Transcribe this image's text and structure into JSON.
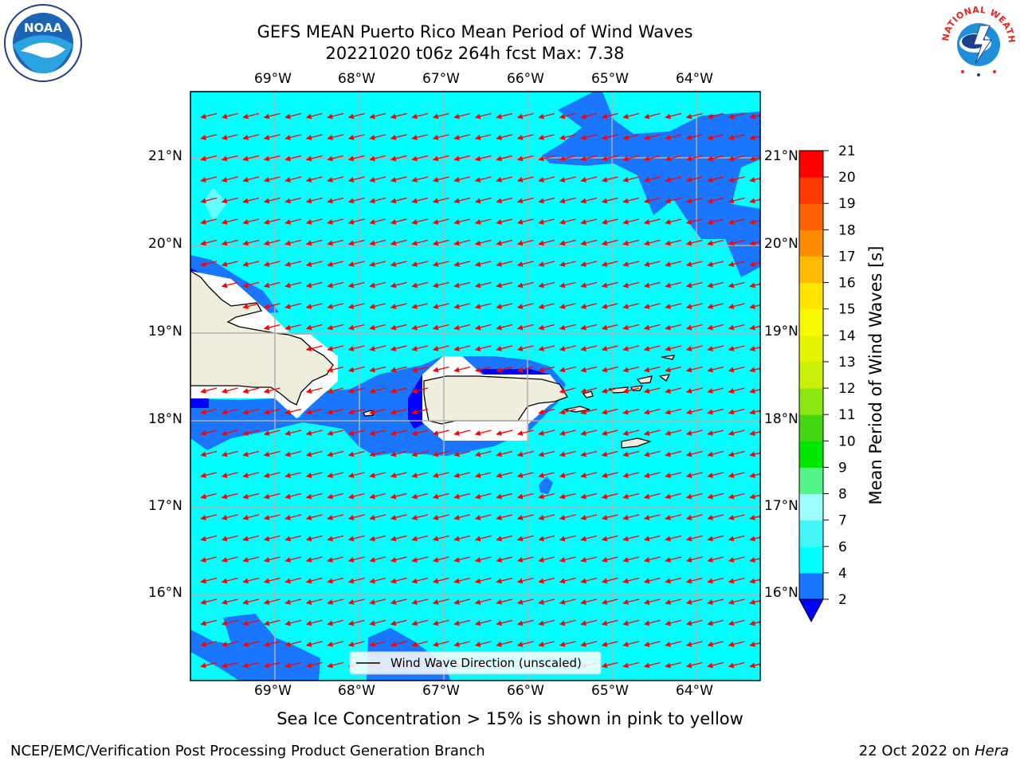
{
  "title_line1": "GEFS MEAN Puerto Rico Mean Period of Wind Waves",
  "title_line2": "20221020 t06z 264h fcst   Max: 7.38",
  "lon_labels": [
    "69°W",
    "68°W",
    "67°W",
    "66°W",
    "65°W",
    "64°W"
  ],
  "lat_labels": [
    "21°N",
    "20°N",
    "19°N",
    "18°N",
    "17°N",
    "16°N"
  ],
  "legend_label": "Wind Wave Direction (unscaled)",
  "colorbar": {
    "label": "Mean Period of Wind Waves [s]",
    "ticks": [
      "2",
      "4",
      "6",
      "7",
      "8",
      "9",
      "10",
      "11",
      "12",
      "13",
      "14",
      "15",
      "16",
      "17",
      "18",
      "19",
      "20",
      "21"
    ],
    "colors": [
      "#1a75ff",
      "#00ffff",
      "#44f7f7",
      "#9effff",
      "#55f58c",
      "#00e600",
      "#43d813",
      "#8be611",
      "#c8f007",
      "#e5f500",
      "#f7f700",
      "#ffe500",
      "#ffbb00",
      "#ff8c00",
      "#ff5f00",
      "#ff3a00",
      "#ff0000"
    ],
    "under_color": "#0000ff"
  },
  "colors": {
    "ocean_main": "#00ffff",
    "ocean_low": "#1a75ff",
    "ocean_lowest": "#0000ff",
    "ocean_light": "#66ffff",
    "land": "#efeedc",
    "arrow": "#ff0000",
    "grid": "#b0b0b0"
  },
  "sea_ice_note": "Sea Ice Concentration > 15% is shown in pink to yellow",
  "footer_left": "NCEP/EMC/Verification Post Processing Product Generation Branch",
  "footer_date": "22 Oct 2022 on ",
  "footer_host": "Hera",
  "logos": {
    "noaa_text": "NOAA",
    "nws_ring_text": "NATIONAL WEATHER SERVICE"
  }
}
